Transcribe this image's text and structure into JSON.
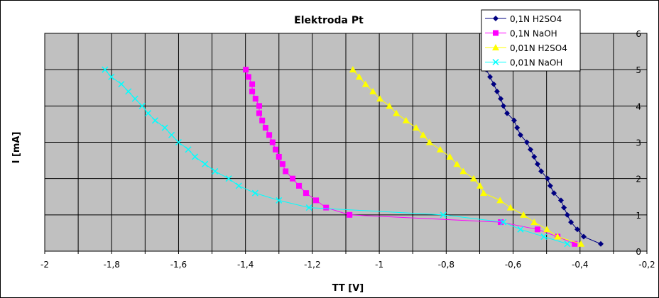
{
  "chart_data": {
    "type": "line",
    "title": "Elektroda Pt",
    "xlabel": "TT [V]",
    "ylabel": "I [mA]",
    "xlim": [
      -2,
      -0.2
    ],
    "ylim": [
      0,
      6
    ],
    "x_ticks": [
      -2,
      -1.8,
      -1.6,
      -1.4,
      -1.2,
      -1,
      -0.8,
      -0.6,
      -0.4,
      -0.2
    ],
    "x_tick_labels": [
      "-2",
      "-1,8",
      "-1,6",
      "-1,4",
      "-1,2",
      "-1",
      "-0,8",
      "-0,6",
      "-0,4",
      "-0,2"
    ],
    "y_ticks": [
      0,
      1,
      2,
      3,
      4,
      5,
      6
    ],
    "y_tick_labels": [
      "0",
      "1",
      "2",
      "3",
      "4",
      "5",
      "6"
    ],
    "grid": true,
    "legend_position": "top-right",
    "series": [
      {
        "name": "0,1N H2SO4",
        "color": "#000080",
        "marker": "diamond",
        "x": [
          -0.338,
          -0.389,
          -0.408,
          -0.427,
          -0.438,
          -0.448,
          -0.457,
          -0.478,
          -0.489,
          -0.497,
          -0.516,
          -0.527,
          -0.537,
          -0.548,
          -0.559,
          -0.578,
          -0.588,
          -0.597,
          -0.618,
          -0.629,
          -0.637,
          -0.648,
          -0.658,
          -0.669,
          -0.68
        ],
        "y": [
          0.2,
          0.4,
          0.6,
          0.8,
          1.0,
          1.2,
          1.4,
          1.6,
          1.8,
          2.0,
          2.2,
          2.4,
          2.6,
          2.8,
          3.0,
          3.2,
          3.4,
          3.6,
          3.8,
          4.0,
          4.2,
          4.4,
          4.6,
          4.8,
          5.0
        ]
      },
      {
        "name": "0,1N NaOH",
        "color": "#ff00ff",
        "marker": "square",
        "x": [
          -0.416,
          -0.467,
          -0.527,
          -0.637,
          -1.089,
          -1.159,
          -1.189,
          -1.219,
          -1.24,
          -1.259,
          -1.28,
          -1.289,
          -1.3,
          -1.31,
          -1.319,
          -1.329,
          -1.34,
          -1.35,
          -1.359,
          -1.359,
          -1.37,
          -1.38,
          -1.38,
          -1.391,
          -1.399
        ],
        "y": [
          0.2,
          0.4,
          0.6,
          0.8,
          1.0,
          1.2,
          1.4,
          1.6,
          1.8,
          2.0,
          2.2,
          2.4,
          2.6,
          2.8,
          3.0,
          3.2,
          3.4,
          3.6,
          3.8,
          4.0,
          4.2,
          4.4,
          4.6,
          4.8,
          5.0
        ]
      },
      {
        "name": "0,01N H2SO4",
        "color": "#ffff00",
        "marker": "triangle",
        "x": [
          -0.397,
          -0.467,
          -0.499,
          -0.537,
          -0.569,
          -0.608,
          -0.639,
          -0.688,
          -0.699,
          -0.718,
          -0.749,
          -0.768,
          -0.789,
          -0.818,
          -0.85,
          -0.869,
          -0.89,
          -0.92,
          -0.949,
          -0.97,
          -0.998,
          -1.019,
          -1.041,
          -1.06,
          -1.079
        ],
        "y": [
          0.2,
          0.4,
          0.6,
          0.8,
          1.0,
          1.2,
          1.4,
          1.6,
          1.8,
          2.0,
          2.2,
          2.4,
          2.6,
          2.8,
          3.0,
          3.2,
          3.4,
          3.6,
          3.8,
          4.0,
          4.2,
          4.4,
          4.6,
          4.8,
          5.0
        ]
      },
      {
        "name": "0,01N NaOH",
        "color": "#00ffff",
        "marker": "cross",
        "x": [
          -0.438,
          -0.508,
          -0.578,
          -0.629,
          -0.809,
          -1.21,
          -1.3,
          -1.371,
          -1.42,
          -1.45,
          -1.491,
          -1.521,
          -1.551,
          -1.571,
          -1.6,
          -1.621,
          -1.641,
          -1.67,
          -1.691,
          -1.709,
          -1.73,
          -1.75,
          -1.771,
          -1.801,
          -1.82
        ],
        "y": [
          0.2,
          0.4,
          0.6,
          0.8,
          1.0,
          1.2,
          1.4,
          1.6,
          1.8,
          2.0,
          2.2,
          2.4,
          2.6,
          2.8,
          3.0,
          3.2,
          3.4,
          3.6,
          3.8,
          4.0,
          4.2,
          4.4,
          4.6,
          4.8,
          5.0
        ]
      }
    ]
  },
  "colors": {
    "plot_bg": "#c0c0c0",
    "grid": "#000000"
  }
}
